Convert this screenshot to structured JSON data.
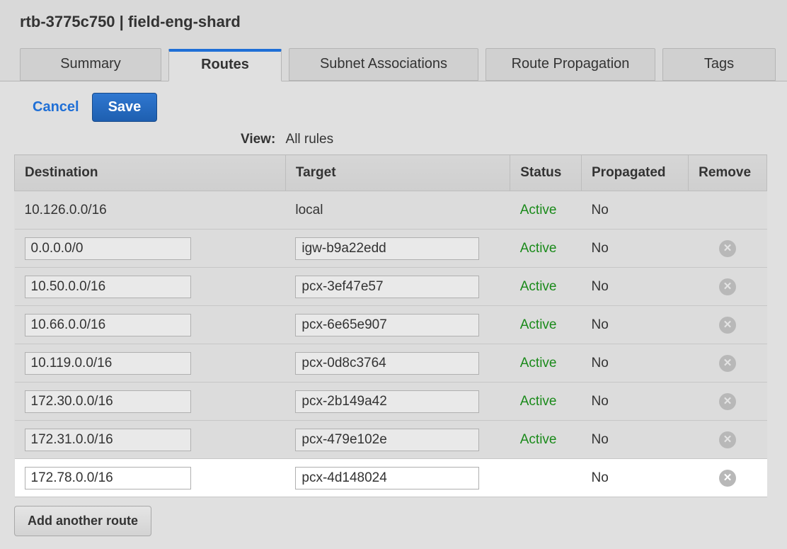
{
  "title": "rtb-3775c750 | field-eng-shard",
  "tabs": {
    "summary": "Summary",
    "routes": "Routes",
    "subnet": "Subnet Associations",
    "propagation": "Route Propagation",
    "tags": "Tags"
  },
  "actions": {
    "cancel": "Cancel",
    "save": "Save",
    "add_another": "Add another route"
  },
  "view": {
    "label": "View:",
    "value": "All rules"
  },
  "columns": {
    "destination": "Destination",
    "target": "Target",
    "status": "Status",
    "propagated": "Propagated",
    "remove": "Remove"
  },
  "rows": [
    {
      "destination": "10.126.0.0/16",
      "target": "local",
      "status": "Active",
      "propagated": "No",
      "editable": false,
      "removable": false,
      "highlight": false
    },
    {
      "destination": "0.0.0.0/0",
      "target": "igw-b9a22edd",
      "status": "Active",
      "propagated": "No",
      "editable": true,
      "removable": true,
      "highlight": false
    },
    {
      "destination": "10.50.0.0/16",
      "target": "pcx-3ef47e57",
      "status": "Active",
      "propagated": "No",
      "editable": true,
      "removable": true,
      "highlight": false
    },
    {
      "destination": "10.66.0.0/16",
      "target": "pcx-6e65e907",
      "status": "Active",
      "propagated": "No",
      "editable": true,
      "removable": true,
      "highlight": false
    },
    {
      "destination": "10.119.0.0/16",
      "target": "pcx-0d8c3764",
      "status": "Active",
      "propagated": "No",
      "editable": true,
      "removable": true,
      "highlight": false
    },
    {
      "destination": "172.30.0.0/16",
      "target": "pcx-2b149a42",
      "status": "Active",
      "propagated": "No",
      "editable": true,
      "removable": true,
      "highlight": false
    },
    {
      "destination": "172.31.0.0/16",
      "target": "pcx-479e102e",
      "status": "Active",
      "propagated": "No",
      "editable": true,
      "removable": true,
      "highlight": false
    },
    {
      "destination": "172.78.0.0/16",
      "target": "pcx-4d148024",
      "status": "",
      "propagated": "No",
      "editable": true,
      "removable": true,
      "highlight": true
    }
  ],
  "colors": {
    "active_status": "#1a8a1a",
    "accent_blue": "#1f6fd6",
    "tab_active_border": "#1f6fd6",
    "panel_bg": "#d9d9d9",
    "body_bg": "#e0e0e0"
  }
}
